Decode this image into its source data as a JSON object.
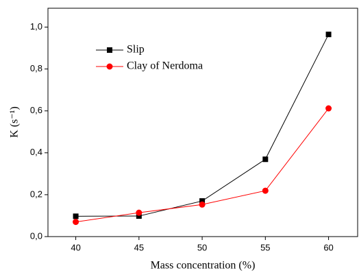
{
  "chart_data": {
    "type": "line",
    "x_label": "Mass concentration (%)",
    "y_label": "K (s⁻¹)",
    "x": [
      40,
      45,
      50,
      55,
      60
    ],
    "series": [
      {
        "name": "Slip",
        "color": "#000000",
        "marker": "square",
        "values": [
          0.097,
          0.098,
          0.17,
          0.369,
          0.965
        ]
      },
      {
        "name": "Clay of Nerdoma",
        "color": "#ff0000",
        "marker": "circle",
        "values": [
          0.07,
          0.114,
          0.153,
          0.219,
          0.612
        ]
      }
    ],
    "xlim": [
      37.8,
      62.3
    ],
    "ylim": [
      0,
      1.09
    ],
    "xticks": [
      40,
      45,
      50,
      55,
      60
    ],
    "yticks": [
      {
        "value": 0,
        "label": "0,0"
      },
      {
        "value": 0.2,
        "label": "0,2"
      },
      {
        "value": 0.4,
        "label": "0,4"
      },
      {
        "value": 0.6,
        "label": "0,6"
      },
      {
        "value": 0.8,
        "label": "0,8"
      },
      {
        "value": 1.0,
        "label": "1,0"
      }
    ],
    "legend": "upper left"
  }
}
